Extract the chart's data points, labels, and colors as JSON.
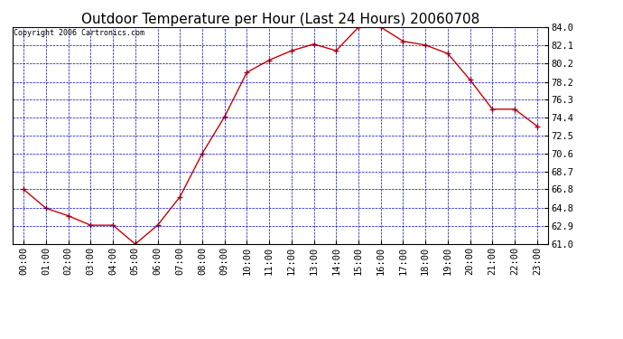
{
  "title": "Outdoor Temperature per Hour (Last 24 Hours) 20060708",
  "copyright": "Copyright 2006 Cartronics.com",
  "hours": [
    "00:00",
    "01:00",
    "02:00",
    "03:00",
    "04:00",
    "05:00",
    "06:00",
    "07:00",
    "08:00",
    "09:00",
    "10:00",
    "11:00",
    "12:00",
    "13:00",
    "14:00",
    "15:00",
    "16:00",
    "17:00",
    "18:00",
    "19:00",
    "20:00",
    "21:00",
    "22:00",
    "23:00"
  ],
  "temps": [
    66.8,
    64.8,
    64.0,
    63.0,
    63.0,
    61.0,
    63.0,
    66.0,
    70.6,
    74.5,
    79.2,
    80.5,
    81.5,
    82.2,
    81.5,
    84.0,
    84.0,
    82.5,
    82.1,
    81.2,
    78.4,
    75.3,
    75.3,
    73.5
  ],
  "line_color": "#cc0000",
  "marker_color": "#cc0000",
  "grid_color": "#0000cc",
  "background_color": "#ffffff",
  "plot_bg_color": "#ffffff",
  "ylim": [
    61.0,
    84.0
  ],
  "yticks": [
    61.0,
    62.9,
    64.8,
    66.8,
    68.7,
    70.6,
    72.5,
    74.4,
    76.3,
    78.2,
    80.2,
    82.1,
    84.0
  ],
  "title_fontsize": 11,
  "copyright_fontsize": 6,
  "tick_fontsize": 7.5
}
